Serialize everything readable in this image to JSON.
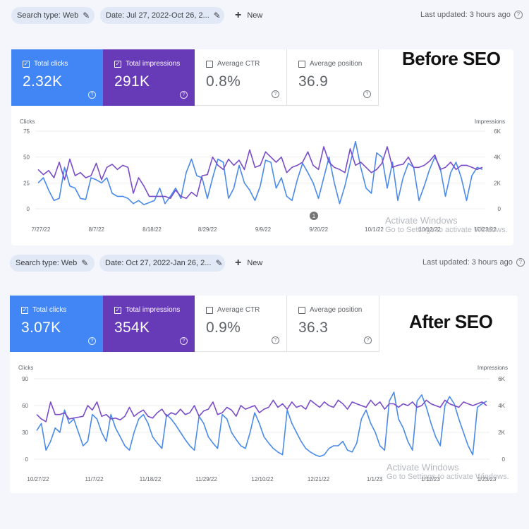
{
  "sections": [
    {
      "toolbar": {
        "search_type": "Search type: Web",
        "date": "Date: Jul 27, 2022-Oct 26, 2...",
        "new_label": "New",
        "last_updated": "Last updated: 3 hours ago"
      },
      "overlay_label": "Before SEO",
      "metrics": {
        "clicks": {
          "label": "Total clicks",
          "value": "2.32K",
          "checked": true
        },
        "impressions": {
          "label": "Total impressions",
          "value": "291K",
          "checked": true
        },
        "ctr": {
          "label": "Average CTR",
          "value": "0.8%",
          "checked": false
        },
        "position": {
          "label": "Average position",
          "value": "36.9",
          "checked": false
        }
      },
      "watermark": {
        "line1": "Activate Windows",
        "line2": "Go to Settings to activate Windows."
      },
      "annotation_marker": "1",
      "chart_data": {
        "type": "line",
        "left_axis_title": "Clicks",
        "right_axis_title": "Impressions",
        "left_ticks": [
          "75",
          "50",
          "25",
          "0"
        ],
        "right_ticks": [
          "6K",
          "4K",
          "2K",
          "0"
        ],
        "ylim_left": [
          0,
          75
        ],
        "ylim_right": [
          0,
          6000
        ],
        "x_tick_labels": [
          "7/27/22",
          "8/7/22",
          "8/18/22",
          "8/29/22",
          "9/9/22",
          "9/20/22",
          "10/1/22",
          "10/12/22",
          "10/23/22"
        ],
        "series": [
          {
            "name": "Clicks",
            "color": "#4a8ae8",
            "axis": "left",
            "values": [
              25,
              30,
              18,
              8,
              10,
              40,
              22,
              20,
              10,
              9,
              30,
              28,
              25,
              30,
              15,
              12,
              12,
              10,
              5,
              8,
              4,
              6,
              8,
              20,
              5,
              12,
              20,
              10,
              35,
              48,
              32,
              30,
              10,
              30,
              48,
              45,
              10,
              20,
              42,
              25,
              18,
              8,
              22,
              47,
              45,
              20,
              30,
              12,
              8,
              28,
              44,
              35,
              25,
              10,
              30,
              50,
              25,
              5,
              22,
              44,
              65,
              40,
              20,
              15,
              54,
              50,
              20,
              45,
              8,
              30,
              44,
              40,
              8,
              22,
              38,
              50,
              40,
              12,
              35,
              45,
              30,
              8,
              32,
              40,
              38
            ]
          },
          {
            "name": "Impressions",
            "color": "#7a4cc9",
            "axis": "left",
            "values": [
              38,
              33,
              37,
              30,
              45,
              28,
              48,
              32,
              35,
              30,
              32,
              44,
              28,
              40,
              43,
              38,
              42,
              40,
              15,
              30,
              22,
              12,
              12,
              12,
              12,
              10,
              18,
              12,
              10,
              16,
              12,
              32,
              33,
              50,
              42,
              38,
              48,
              42,
              47,
              38,
              57,
              40,
              42,
              55,
              50,
              45,
              50,
              35,
              40,
              42,
              45,
              55,
              42,
              38,
              60,
              45,
              40,
              38,
              35,
              58,
              42,
              45,
              40,
              35,
              38,
              44,
              60,
              40,
              42,
              43,
              50,
              40,
              40,
              42,
              46,
              52,
              38,
              40,
              45,
              38,
              42,
              42,
              40,
              38,
              40
            ]
          }
        ]
      }
    },
    {
      "toolbar": {
        "search_type": "Search type: Web",
        "date": "Date: Oct 27, 2022-Jan 26, 2...",
        "new_label": "New",
        "last_updated": "Last updated: 3 hours ago"
      },
      "overlay_label": "After SEO",
      "metrics": {
        "clicks": {
          "label": "Total clicks",
          "value": "3.07K",
          "checked": true
        },
        "impressions": {
          "label": "Total impressions",
          "value": "354K",
          "checked": true
        },
        "ctr": {
          "label": "Average CTR",
          "value": "0.9%",
          "checked": false
        },
        "position": {
          "label": "Average position",
          "value": "36.3",
          "checked": false
        }
      },
      "watermark": {
        "line1": "Activate Windows",
        "line2": "Go to Settings to activate Windows."
      },
      "annotation_marker": "",
      "chart_data": {
        "type": "line",
        "left_axis_title": "Clicks",
        "right_axis_title": "Impressions",
        "left_ticks": [
          "90",
          "60",
          "30",
          "0"
        ],
        "right_ticks": [
          "6K",
          "4K",
          "2K",
          "0"
        ],
        "ylim_left": [
          0,
          90
        ],
        "ylim_right": [
          0,
          6000
        ],
        "x_tick_labels": [
          "10/27/22",
          "11/7/22",
          "11/18/22",
          "11/29/22",
          "12/10/22",
          "12/21/22",
          "1/1/23",
          "1/12/23",
          "1/23/23"
        ],
        "series": [
          {
            "name": "Clicks",
            "color": "#4a8ae8",
            "axis": "left",
            "values": [
              32,
              40,
              10,
              20,
              35,
              30,
              55,
              40,
              45,
              30,
              15,
              20,
              50,
              45,
              30,
              20,
              50,
              35,
              25,
              15,
              10,
              30,
              45,
              50,
              40,
              25,
              18,
              12,
              50,
              45,
              38,
              30,
              22,
              15,
              10,
              48,
              40,
              25,
              18,
              12,
              50,
              45,
              30,
              22,
              15,
              12,
              30,
              52,
              40,
              25,
              18,
              12,
              8,
              5,
              55,
              40,
              30,
              20,
              12,
              8,
              5,
              3,
              5,
              12,
              15,
              15,
              20,
              10,
              8,
              18,
              45,
              55,
              40,
              30,
              15,
              10,
              65,
              75,
              45,
              35,
              20,
              10,
              65,
              72,
              58,
              40,
              25,
              15,
              60,
              70,
              62,
              45,
              30,
              15,
              5,
              58,
              62,
              65
            ]
          },
          {
            "name": "Impressions",
            "color": "#7a4cc9",
            "axis": "left",
            "values": [
              50,
              45,
              42,
              64,
              50,
              50,
              52,
              45,
              46,
              47,
              48,
              60,
              55,
              64,
              48,
              50,
              45,
              46,
              44,
              48,
              58,
              48,
              52,
              55,
              48,
              46,
              52,
              56,
              48,
              52,
              50,
              56,
              50,
              52,
              60,
              48,
              54,
              56,
              64,
              50,
              52,
              58,
              55,
              48,
              60,
              56,
              58,
              60,
              52,
              56,
              58,
              66,
              58,
              62,
              56,
              64,
              58,
              60,
              56,
              66,
              62,
              58,
              64,
              60,
              58,
              66,
              62,
              56,
              64,
              62,
              60,
              58,
              66,
              60,
              64,
              56,
              62,
              62,
              58,
              62,
              60,
              64,
              58,
              60,
              66,
              62,
              60,
              58,
              66,
              62,
              60,
              58,
              64,
              62,
              60,
              62,
              64,
              60
            ]
          }
        ]
      }
    }
  ]
}
